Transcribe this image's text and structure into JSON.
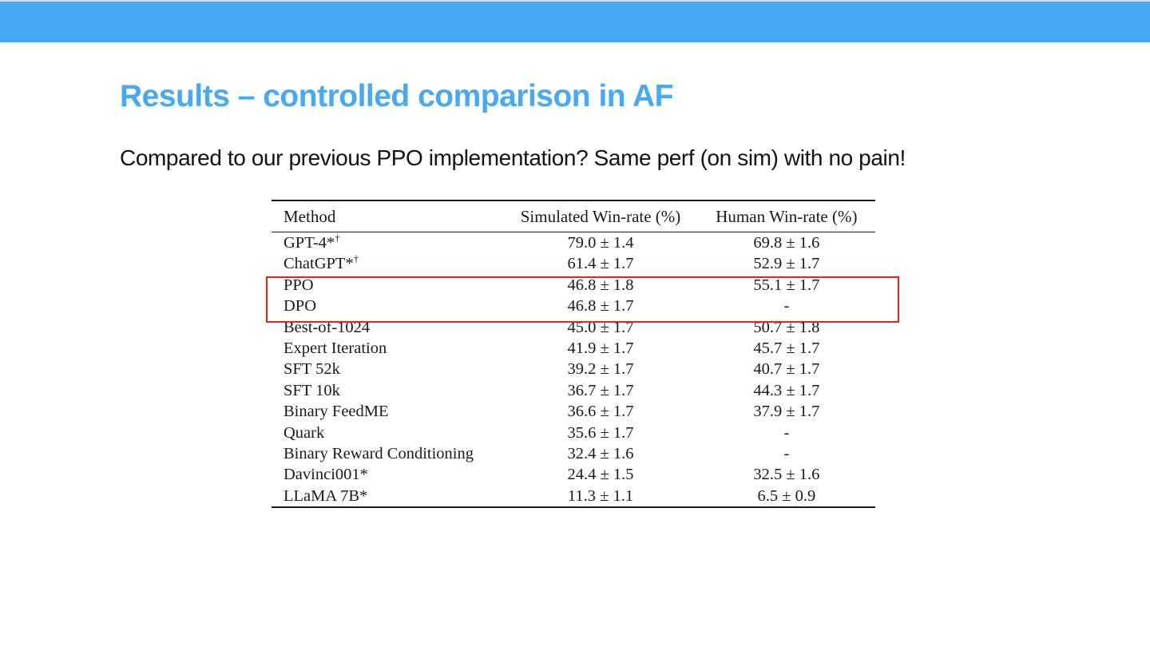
{
  "slide": {
    "title": "Results – controlled comparison in AF",
    "subtitle": "Compared to our previous PPO implementation? Same perf (on sim) with no pain!"
  },
  "colors": {
    "accent_blue": "#45a9f6",
    "highlight_red": "#e3251c"
  },
  "table": {
    "headers": {
      "method": "Method",
      "simulated": "Simulated Win-rate (%)",
      "human": "Human Win-rate (%)"
    },
    "rows": [
      {
        "method": "GPT-4*",
        "sup": "†",
        "sim": "79.0 ± 1.4",
        "human": "69.8 ± 1.6"
      },
      {
        "method": "ChatGPT*",
        "sup": "†",
        "sim": "61.4 ± 1.7",
        "human": "52.9 ± 1.7"
      },
      {
        "method": "PPO",
        "sup": "",
        "sim": "46.8 ± 1.8",
        "human": "55.1 ± 1.7"
      },
      {
        "method": "DPO",
        "sup": "",
        "sim": "46.8 ± 1.7",
        "human": "-"
      },
      {
        "method": "Best-of-1024",
        "sup": "",
        "sim": "45.0 ± 1.7",
        "human": "50.7 ± 1.8"
      },
      {
        "method": "Expert Iteration",
        "sup": "",
        "sim": "41.9 ± 1.7",
        "human": "45.7 ± 1.7"
      },
      {
        "method": "SFT 52k",
        "sup": "",
        "sim": "39.2 ± 1.7",
        "human": "40.7 ± 1.7"
      },
      {
        "method": "SFT 10k",
        "sup": "",
        "sim": "36.7 ± 1.7",
        "human": "44.3 ± 1.7"
      },
      {
        "method": "Binary FeedME",
        "sup": "",
        "sim": "36.6 ± 1.7",
        "human": "37.9 ± 1.7"
      },
      {
        "method": "Quark",
        "sup": "",
        "sim": "35.6 ± 1.7",
        "human": "-"
      },
      {
        "method": "Binary Reward Conditioning",
        "sup": "",
        "sim": "32.4 ± 1.6",
        "human": "-"
      },
      {
        "method": "Davinci001*",
        "sup": "",
        "sim": "24.4 ± 1.5",
        "human": "32.5 ± 1.6"
      },
      {
        "method": "LLaMA 7B*",
        "sup": "",
        "sim": "11.3 ± 1.1",
        "human": "6.5 ± 0.9"
      }
    ],
    "highlighted_methods": [
      "PPO",
      "DPO"
    ]
  }
}
